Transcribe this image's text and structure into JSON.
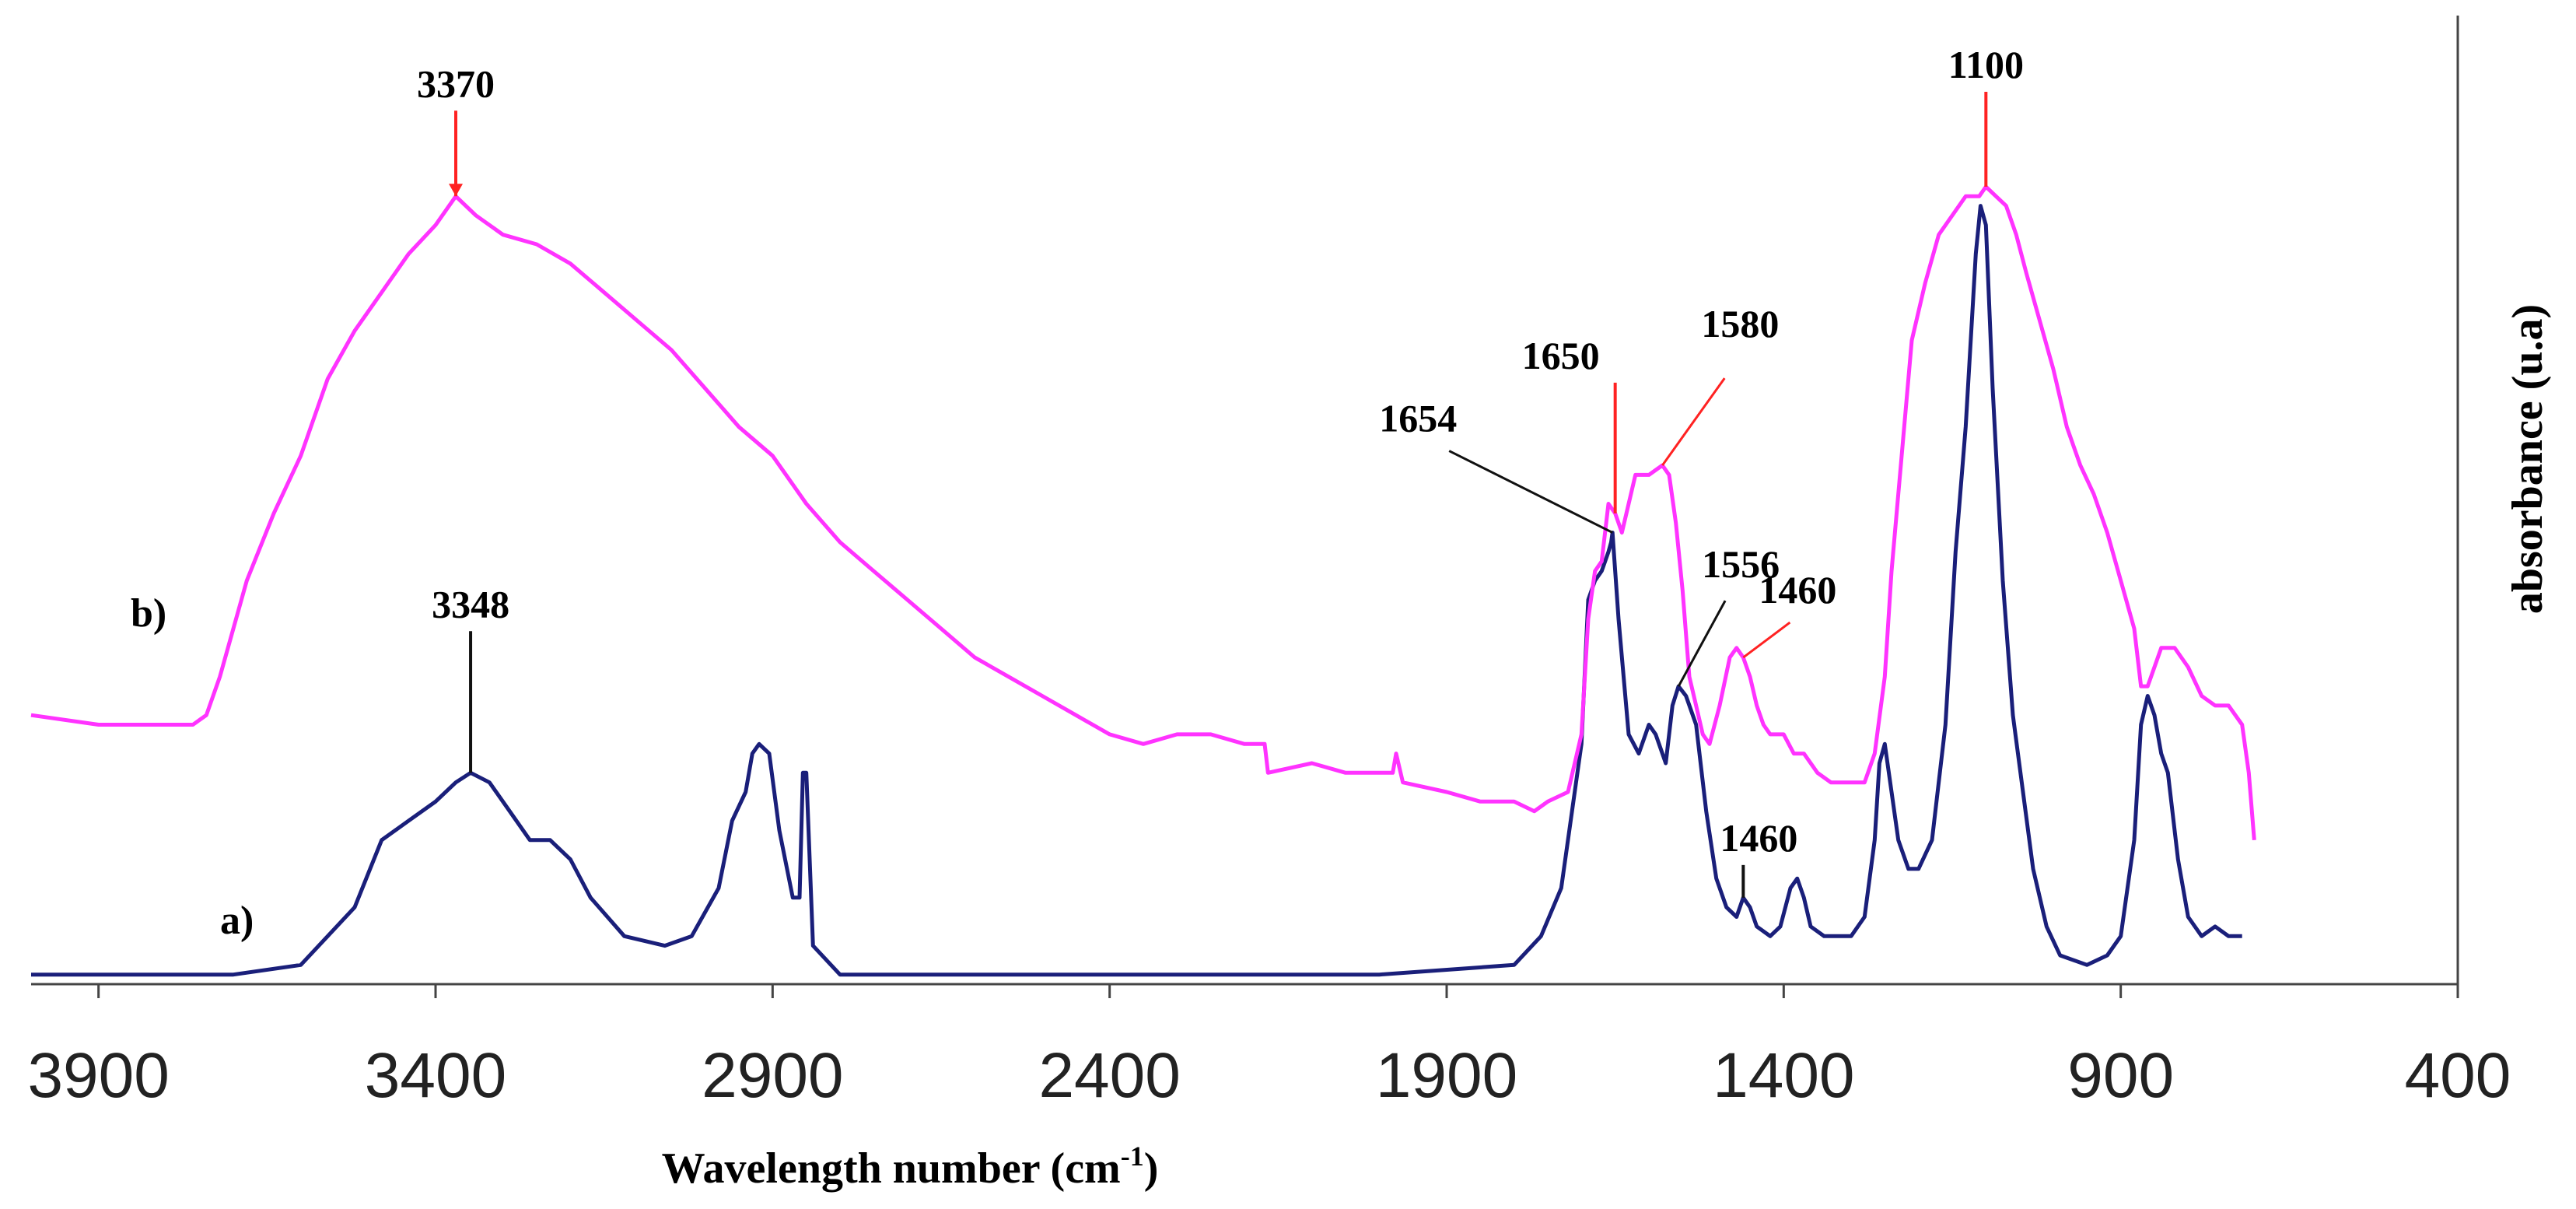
{
  "chart_data": {
    "type": "line",
    "title": "",
    "xlabel": "Wavelength number (cm",
    "xlabel_sup": "-1",
    "xlabel_end": ")",
    "ylabel": "absorbance (u.a)",
    "xlim": [
      4000,
      400
    ],
    "x_reversed": true,
    "xticks": [
      3900,
      3400,
      2900,
      2400,
      1900,
      1400,
      900,
      400
    ],
    "ylim": [
      0,
      1
    ],
    "grid": false,
    "series": [
      {
        "name": "a)",
        "color": "#1a1f7a",
        "points": [
          [
            4000,
            0.01
          ],
          [
            3800,
            0.01
          ],
          [
            3700,
            0.01
          ],
          [
            3600,
            0.02
          ],
          [
            3520,
            0.08
          ],
          [
            3480,
            0.15
          ],
          [
            3440,
            0.17
          ],
          [
            3400,
            0.19
          ],
          [
            3370,
            0.21
          ],
          [
            3348,
            0.22
          ],
          [
            3320,
            0.21
          ],
          [
            3290,
            0.18
          ],
          [
            3260,
            0.15
          ],
          [
            3230,
            0.15
          ],
          [
            3200,
            0.13
          ],
          [
            3170,
            0.09
          ],
          [
            3120,
            0.05
          ],
          [
            3060,
            0.04
          ],
          [
            3020,
            0.05
          ],
          [
            2980,
            0.1
          ],
          [
            2960,
            0.17
          ],
          [
            2940,
            0.2
          ],
          [
            2930,
            0.24
          ],
          [
            2920,
            0.25
          ],
          [
            2905,
            0.24
          ],
          [
            2890,
            0.16
          ],
          [
            2870,
            0.09
          ],
          [
            2860,
            0.09
          ],
          [
            2855,
            0.22
          ],
          [
            2850,
            0.22
          ],
          [
            2840,
            0.04
          ],
          [
            2800,
            0.01
          ],
          [
            2400,
            0.01
          ],
          [
            2000,
            0.01
          ],
          [
            1800,
            0.02
          ],
          [
            1760,
            0.05
          ],
          [
            1730,
            0.1
          ],
          [
            1700,
            0.25
          ],
          [
            1690,
            0.4
          ],
          [
            1680,
            0.42
          ],
          [
            1670,
            0.43
          ],
          [
            1660,
            0.45
          ],
          [
            1656,
            0.46
          ],
          [
            1654,
            0.47
          ],
          [
            1645,
            0.38
          ],
          [
            1630,
            0.26
          ],
          [
            1615,
            0.24
          ],
          [
            1600,
            0.27
          ],
          [
            1590,
            0.26
          ],
          [
            1575,
            0.23
          ],
          [
            1565,
            0.29
          ],
          [
            1556,
            0.31
          ],
          [
            1545,
            0.3
          ],
          [
            1530,
            0.27
          ],
          [
            1515,
            0.18
          ],
          [
            1500,
            0.11
          ],
          [
            1485,
            0.08
          ],
          [
            1470,
            0.07
          ],
          [
            1460,
            0.09
          ],
          [
            1450,
            0.08
          ],
          [
            1440,
            0.06
          ],
          [
            1420,
            0.05
          ],
          [
            1405,
            0.06
          ],
          [
            1390,
            0.1
          ],
          [
            1380,
            0.11
          ],
          [
            1370,
            0.09
          ],
          [
            1360,
            0.06
          ],
          [
            1340,
            0.05
          ],
          [
            1320,
            0.05
          ],
          [
            1300,
            0.05
          ],
          [
            1280,
            0.07
          ],
          [
            1265,
            0.15
          ],
          [
            1258,
            0.23
          ],
          [
            1250,
            0.25
          ],
          [
            1240,
            0.2
          ],
          [
            1230,
            0.15
          ],
          [
            1215,
            0.12
          ],
          [
            1200,
            0.12
          ],
          [
            1180,
            0.15
          ],
          [
            1160,
            0.27
          ],
          [
            1145,
            0.45
          ],
          [
            1130,
            0.58
          ],
          [
            1115,
            0.76
          ],
          [
            1108,
            0.81
          ],
          [
            1100,
            0.79
          ],
          [
            1090,
            0.62
          ],
          [
            1075,
            0.42
          ],
          [
            1060,
            0.28
          ],
          [
            1045,
            0.2
          ],
          [
            1030,
            0.12
          ],
          [
            1010,
            0.06
          ],
          [
            990,
            0.03
          ],
          [
            950,
            0.02
          ],
          [
            920,
            0.03
          ],
          [
            900,
            0.05
          ],
          [
            880,
            0.15
          ],
          [
            870,
            0.27
          ],
          [
            860,
            0.3
          ],
          [
            850,
            0.28
          ],
          [
            840,
            0.24
          ],
          [
            830,
            0.22
          ],
          [
            815,
            0.13
          ],
          [
            800,
            0.07
          ],
          [
            780,
            0.05
          ],
          [
            760,
            0.06
          ],
          [
            740,
            0.05
          ],
          [
            720,
            0.05
          ]
        ]
      },
      {
        "name": "b)",
        "color": "#ff33ff",
        "points": [
          [
            4000,
            0.28
          ],
          [
            3900,
            0.27
          ],
          [
            3760,
            0.27
          ],
          [
            3740,
            0.28
          ],
          [
            3720,
            0.32
          ],
          [
            3680,
            0.42
          ],
          [
            3640,
            0.49
          ],
          [
            3600,
            0.55
          ],
          [
            3560,
            0.63
          ],
          [
            3520,
            0.68
          ],
          [
            3480,
            0.72
          ],
          [
            3440,
            0.76
          ],
          [
            3400,
            0.79
          ],
          [
            3370,
            0.82
          ],
          [
            3340,
            0.8
          ],
          [
            3300,
            0.78
          ],
          [
            3250,
            0.77
          ],
          [
            3200,
            0.75
          ],
          [
            3150,
            0.72
          ],
          [
            3100,
            0.69
          ],
          [
            3050,
            0.66
          ],
          [
            3000,
            0.62
          ],
          [
            2950,
            0.58
          ],
          [
            2900,
            0.55
          ],
          [
            2850,
            0.5
          ],
          [
            2800,
            0.46
          ],
          [
            2750,
            0.43
          ],
          [
            2700,
            0.4
          ],
          [
            2650,
            0.37
          ],
          [
            2600,
            0.34
          ],
          [
            2550,
            0.32
          ],
          [
            2500,
            0.3
          ],
          [
            2450,
            0.28
          ],
          [
            2400,
            0.26
          ],
          [
            2350,
            0.25
          ],
          [
            2300,
            0.26
          ],
          [
            2250,
            0.26
          ],
          [
            2200,
            0.25
          ],
          [
            2170,
            0.25
          ],
          [
            2165,
            0.22
          ],
          [
            2100,
            0.23
          ],
          [
            2050,
            0.22
          ],
          [
            2000,
            0.22
          ],
          [
            1980,
            0.22
          ],
          [
            1975,
            0.24
          ],
          [
            1965,
            0.21
          ],
          [
            1900,
            0.2
          ],
          [
            1850,
            0.19
          ],
          [
            1800,
            0.19
          ],
          [
            1770,
            0.18
          ],
          [
            1750,
            0.19
          ],
          [
            1720,
            0.2
          ],
          [
            1700,
            0.26
          ],
          [
            1690,
            0.38
          ],
          [
            1680,
            0.43
          ],
          [
            1670,
            0.44
          ],
          [
            1660,
            0.5
          ],
          [
            1650,
            0.49
          ],
          [
            1640,
            0.47
          ],
          [
            1630,
            0.5
          ],
          [
            1620,
            0.53
          ],
          [
            1600,
            0.53
          ],
          [
            1580,
            0.54
          ],
          [
            1570,
            0.53
          ],
          [
            1560,
            0.48
          ],
          [
            1550,
            0.41
          ],
          [
            1540,
            0.32
          ],
          [
            1530,
            0.29
          ],
          [
            1520,
            0.26
          ],
          [
            1510,
            0.25
          ],
          [
            1495,
            0.29
          ],
          [
            1480,
            0.34
          ],
          [
            1470,
            0.35
          ],
          [
            1460,
            0.34
          ],
          [
            1450,
            0.32
          ],
          [
            1440,
            0.29
          ],
          [
            1430,
            0.27
          ],
          [
            1420,
            0.26
          ],
          [
            1400,
            0.26
          ],
          [
            1385,
            0.24
          ],
          [
            1370,
            0.24
          ],
          [
            1350,
            0.22
          ],
          [
            1330,
            0.21
          ],
          [
            1300,
            0.21
          ],
          [
            1280,
            0.21
          ],
          [
            1265,
            0.24
          ],
          [
            1250,
            0.32
          ],
          [
            1240,
            0.43
          ],
          [
            1225,
            0.55
          ],
          [
            1210,
            0.67
          ],
          [
            1190,
            0.73
          ],
          [
            1170,
            0.78
          ],
          [
            1150,
            0.8
          ],
          [
            1130,
            0.82
          ],
          [
            1110,
            0.82
          ],
          [
            1100,
            0.83
          ],
          [
            1085,
            0.82
          ],
          [
            1070,
            0.81
          ],
          [
            1055,
            0.78
          ],
          [
            1040,
            0.74
          ],
          [
            1020,
            0.69
          ],
          [
            1000,
            0.64
          ],
          [
            980,
            0.58
          ],
          [
            960,
            0.54
          ],
          [
            940,
            0.51
          ],
          [
            920,
            0.47
          ],
          [
            900,
            0.42
          ],
          [
            880,
            0.37
          ],
          [
            870,
            0.31
          ],
          [
            860,
            0.31
          ],
          [
            850,
            0.33
          ],
          [
            840,
            0.35
          ],
          [
            820,
            0.35
          ],
          [
            800,
            0.33
          ],
          [
            780,
            0.3
          ],
          [
            760,
            0.29
          ],
          [
            740,
            0.29
          ],
          [
            720,
            0.27
          ],
          [
            710,
            0.22
          ],
          [
            702,
            0.15
          ]
        ]
      }
    ],
    "annotations": [
      {
        "text": "3370",
        "series": "b)",
        "x": 3370,
        "color": "#ff2222",
        "type": "arrow"
      },
      {
        "text": "1100",
        "series": "b)",
        "x": 1100,
        "color": "#ff2222",
        "type": "line"
      },
      {
        "text": "1650",
        "series": "b)",
        "x": 1650,
        "color": "#ff2222",
        "type": "line"
      },
      {
        "text": "1580",
        "series": "b)",
        "x": 1580,
        "color": "#ff2222",
        "type": "leader"
      },
      {
        "text": "1460",
        "series": "b)",
        "x": 1460,
        "color": "#ff2222",
        "type": "leader"
      },
      {
        "text": "1654",
        "series": "a)",
        "x": 1654,
        "color": "#111111",
        "type": "leader"
      },
      {
        "text": "1556",
        "series": "a)",
        "x": 1556,
        "color": "#111111",
        "type": "leader"
      },
      {
        "text": "1460",
        "series": "a)",
        "x": 1460,
        "color": "#111111",
        "type": "line"
      },
      {
        "text": "3348",
        "series": "a)",
        "x": 3348,
        "color": "#111111",
        "type": "line"
      }
    ]
  }
}
